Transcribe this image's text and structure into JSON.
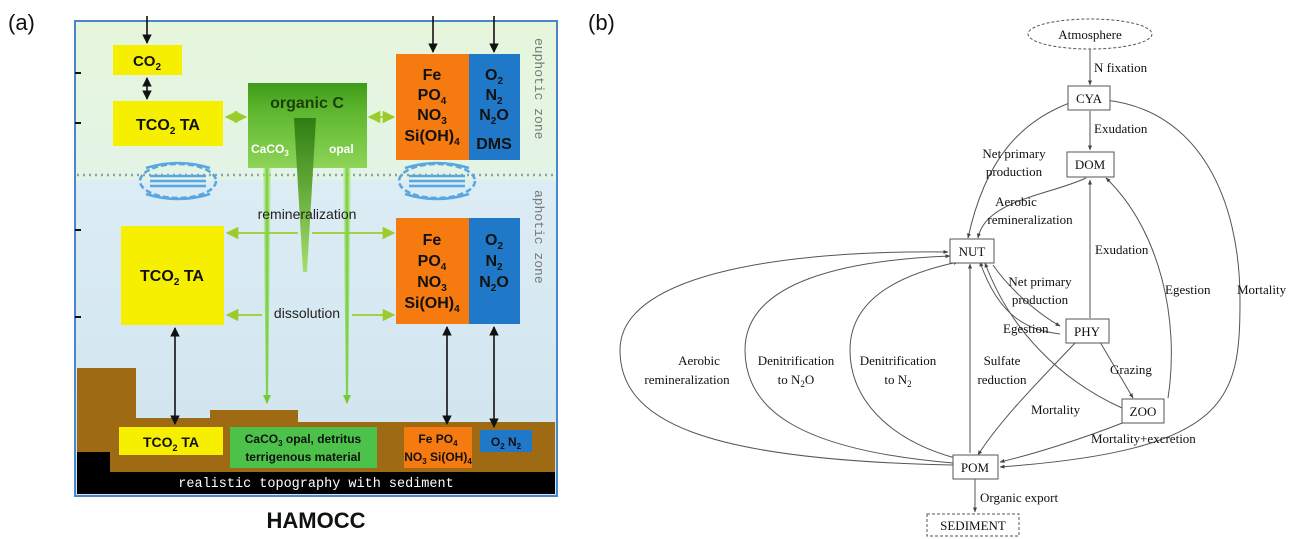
{
  "panel_a": {
    "label": "(a)",
    "caption": "HAMOCC",
    "zone_euphotic": "euphotic zone",
    "zone_aphotic": "aphotic zone",
    "top": {
      "co2": "CO",
      "co2_sub": "2",
      "tco2_a": "TCO",
      "tco2_b": " TA",
      "organic_c": "organic C",
      "caco3": "CaCO",
      "caco3_sub": "3",
      "opal": "opal",
      "nut_fe": "Fe",
      "nut_po4": "PO",
      "nut_po4_sub": "4",
      "nut_no3": "NO",
      "nut_no3_sub": "3",
      "nut_sioh4": "Si(OH)",
      "nut_sioh4_sub": "4",
      "gas_o2": "O",
      "gas_o2_sub": "2",
      "gas_n2": "N",
      "gas_n2_sub": "2",
      "gas_n2o": "N",
      "gas_n2o_sub": "2",
      "gas_n2o_tail": "O",
      "gas_dms": "DMS"
    },
    "middle": {
      "remineralization": "remineralization",
      "dissolution": "dissolution",
      "tco2_a": "TCO",
      "tco2_b": " TA"
    },
    "bottom": {
      "tco2_a": "TCO",
      "tco2_b": " TA",
      "sediment_line1": "CaCO",
      "sediment_line1_sub": "3",
      "sediment_line1_tail": " opal, detritus",
      "sediment_line2": "terrigenous material",
      "nut_line1": "Fe PO",
      "nut_line1_sub": "4",
      "nut_line2": "NO",
      "nut_line2_sub": "3",
      "nut_line2_tail": " Si(OH)",
      "nut_line2_sub2": "4",
      "gas_o2": "O",
      "gas_o2_sub": "2",
      "gas_n2": " N",
      "gas_n2_sub": "2",
      "topography": "realistic topography with sediment"
    }
  },
  "panel_b": {
    "label": "(b)",
    "nodes": {
      "atmosphere": "Atmosphere",
      "cya": "CYA",
      "dom": "DOM",
      "nut": "NUT",
      "phy": "PHY",
      "zoo": "ZOO",
      "pom": "POM",
      "sediment": "SEDIMENT"
    },
    "edges": {
      "n_fixation": "N fixation",
      "exudation_cya": "Exudation",
      "npp1_line1": "Net primary",
      "npp1_line2": "production",
      "aerobic1_line1": "Aerobic",
      "aerobic1_line2": "remineralization",
      "exudation_phy": "Exudation",
      "npp2_line1": "Net primary",
      "npp2_line2": "production",
      "egestion_nut": "Egestion",
      "egestion_zoo": "Egestion",
      "mortality_cya": "Mortality",
      "grazing": "Grazing",
      "aerobic2_line1": "Aerobic",
      "aerobic2_line2": "remineralization",
      "denit1_line1": "Denitrification",
      "denit1_line2": "to N",
      "denit1_sub": "2",
      "denit1_tail": "O",
      "denit2_line1": "Denitrification",
      "denit2_line2": "to N",
      "denit2_sub": "2",
      "sulfate_line1": "Sulfate",
      "sulfate_line2": "reduction",
      "mortality_phy": "Mortality",
      "mortality_excretion": "Mortality+excretion",
      "organic_export": "Organic export"
    }
  }
}
